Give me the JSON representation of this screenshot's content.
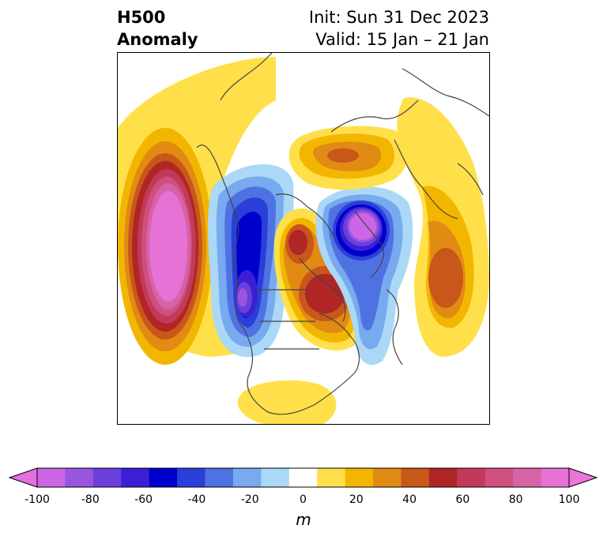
{
  "title": {
    "left_line1": "H500",
    "left_line2": "Anomaly",
    "right_line1": "Init: Sun 31 Dec 2023",
    "right_line2": "Valid: 15 Jan – 21 Jan"
  },
  "colorbar": {
    "ticks": [
      "-100",
      "-80",
      "-60",
      "-40",
      "-20",
      "0",
      "20",
      "40",
      "60",
      "80",
      "100"
    ],
    "units": "m",
    "levels": [
      -100,
      -90,
      -80,
      -70,
      -60,
      -50,
      -40,
      -30,
      -20,
      -10,
      10,
      20,
      30,
      40,
      50,
      60,
      70,
      80,
      90,
      100
    ],
    "colors": [
      "#cc66e6",
      "#9955dd",
      "#6a3fdc",
      "#3a1fd6",
      "#0000cc",
      "#2a3fd9",
      "#4f72e3",
      "#77aaee",
      "#aad8f6",
      "#ffffff",
      "#ffe04a",
      "#f2b600",
      "#e18a14",
      "#c8571a",
      "#b02525",
      "#c23a5a",
      "#cf507e",
      "#d862a8",
      "#e672d6"
    ]
  },
  "map": {
    "projection": "north-polar-stereographic",
    "features": [
      {
        "name": "positive-anomaly-north-pacific",
        "value": 100
      },
      {
        "name": "negative-anomaly-western-north-america",
        "value": -80
      },
      {
        "name": "positive-anomaly-greenland-canada",
        "value": 60
      },
      {
        "name": "negative-anomaly-scandinavia-barents",
        "value": -80
      },
      {
        "name": "positive-anomaly-siberia",
        "value": 40
      },
      {
        "name": "positive-anomaly-central-asia",
        "value": 50
      },
      {
        "name": "positive-anomaly-southeast-us",
        "value": 20
      }
    ]
  }
}
